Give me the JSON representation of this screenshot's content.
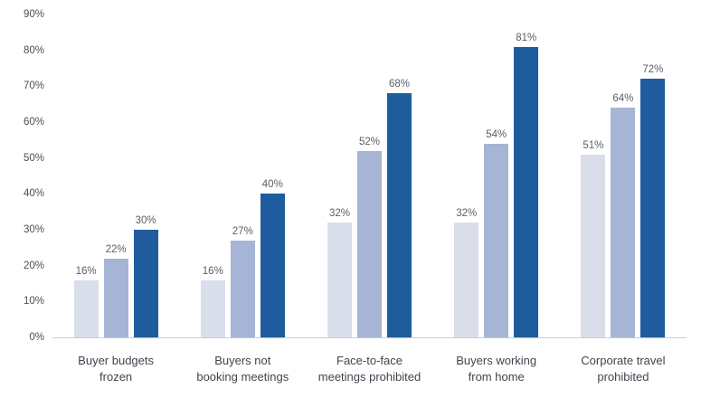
{
  "chart_data": {
    "type": "bar",
    "title": "",
    "xlabel": "",
    "ylabel": "",
    "ylim": [
      0,
      90
    ],
    "ytick_step": 10,
    "ytick_labels": [
      "0%",
      "10%",
      "20%",
      "30%",
      "40%",
      "50%",
      "60%",
      "70%",
      "80%",
      "90%"
    ],
    "grid": false,
    "legend": "none",
    "value_label_suffix": "%",
    "categories": [
      "Buyer budgets\nfrozen",
      "Buyers not\nbooking meetings",
      "Face-to-face\nmeetings prohibited",
      "Buyers working\nfrom home",
      "Corporate travel\nprohibited"
    ],
    "series": [
      {
        "name": "series-light",
        "color": "#dadeea",
        "values": [
          16,
          16,
          32,
          32,
          51
        ]
      },
      {
        "name": "series-medium",
        "color": "#a6b4d5",
        "values": [
          22,
          27,
          52,
          54,
          64
        ]
      },
      {
        "name": "series-dark",
        "color": "#1e5c9d",
        "values": [
          30,
          40,
          68,
          81,
          72
        ]
      }
    ],
    "colors": {
      "axis_line": "#c9cdd4",
      "tick_label": "#4a4f57",
      "value_label": "#5a5f66",
      "category_label": "#3f454d"
    }
  }
}
